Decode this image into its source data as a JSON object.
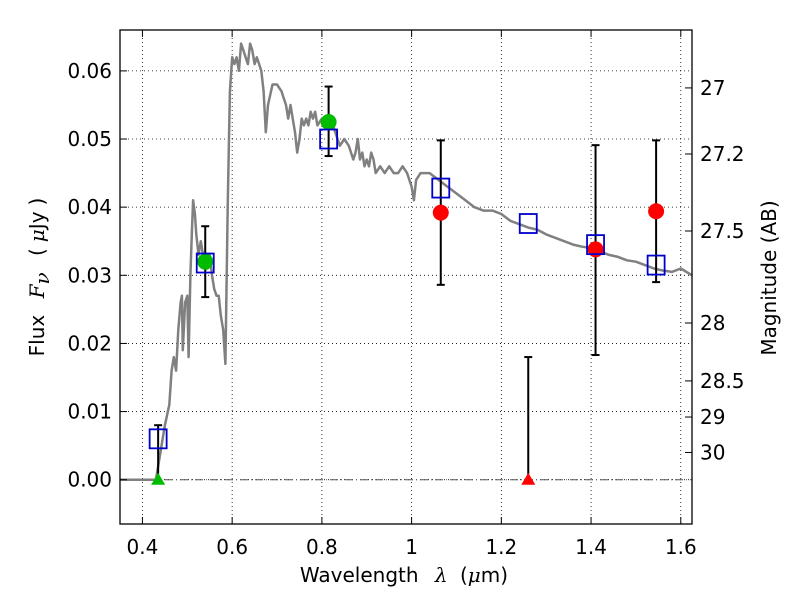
{
  "chart_data": {
    "type": "scatter",
    "xlabel": {
      "prefix": "Wavelength",
      "symbol": "λ",
      "unit_open": "(",
      "unit_mu": "μ",
      "unit_rest": "m)"
    },
    "ylabel": {
      "prefix": "Flux",
      "symbol": "F",
      "subscript": "ν",
      "unit_open": "(",
      "unit_mu": "μ",
      "unit_rest": "Jy",
      "unit_close": ")"
    },
    "y2label": "Magnitude (AB)",
    "xlim": [
      0.35,
      1.625
    ],
    "ylim": [
      -0.0065,
      0.066
    ],
    "xticks": [
      {
        "value": 0.4,
        "label": "0.4"
      },
      {
        "value": 0.6,
        "label": "0.6"
      },
      {
        "value": 0.8,
        "label": "0.8"
      },
      {
        "value": 1.0,
        "label": "1"
      },
      {
        "value": 1.2,
        "label": "1.2"
      },
      {
        "value": 1.4,
        "label": "1.4"
      },
      {
        "value": 1.6,
        "label": "1.6"
      }
    ],
    "yticks": [
      {
        "value": 0.0,
        "label": "0.00"
      },
      {
        "value": 0.01,
        "label": "0.01"
      },
      {
        "value": 0.02,
        "label": "0.02"
      },
      {
        "value": 0.03,
        "label": "0.03"
      },
      {
        "value": 0.04,
        "label": "0.04"
      },
      {
        "value": 0.05,
        "label": "0.05"
      },
      {
        "value": 0.06,
        "label": "0.06"
      }
    ],
    "y2ticks": [
      {
        "flux": 0.0575,
        "label": "27"
      },
      {
        "flux": 0.0478,
        "label": "27.2"
      },
      {
        "flux": 0.0365,
        "label": "27.5"
      },
      {
        "flux": 0.023,
        "label": "28"
      },
      {
        "flux": 0.0145,
        "label": "28.5"
      },
      {
        "flux": 0.0092,
        "label": "29"
      },
      {
        "flux": 0.004,
        "label": "30"
      }
    ],
    "grid": true,
    "colors": {
      "model": "#808080",
      "model_points": "#0000cc",
      "green_obs": "#00bb00",
      "red_obs": "#ff0000",
      "errorbar": "#000000",
      "zero_line": "#555555"
    },
    "series": [
      {
        "name": "model spectrum",
        "kind": "line",
        "points": [
          [
            0.35,
            0.0
          ],
          [
            0.43,
            0.0
          ],
          [
            0.44,
            0.004
          ],
          [
            0.45,
            0.008
          ],
          [
            0.46,
            0.011
          ],
          [
            0.465,
            0.016
          ],
          [
            0.47,
            0.018
          ],
          [
            0.475,
            0.016
          ],
          [
            0.48,
            0.022
          ],
          [
            0.485,
            0.026
          ],
          [
            0.488,
            0.027
          ],
          [
            0.49,
            0.019
          ],
          [
            0.495,
            0.026
          ],
          [
            0.5,
            0.027
          ],
          [
            0.503,
            0.018
          ],
          [
            0.507,
            0.03
          ],
          [
            0.51,
            0.036
          ],
          [
            0.513,
            0.041
          ],
          [
            0.517,
            0.039
          ],
          [
            0.52,
            0.036
          ],
          [
            0.525,
            0.033
          ],
          [
            0.53,
            0.035
          ],
          [
            0.535,
            0.033
          ],
          [
            0.54,
            0.032
          ],
          [
            0.545,
            0.031
          ],
          [
            0.55,
            0.033
          ],
          [
            0.555,
            0.03
          ],
          [
            0.56,
            0.028
          ],
          [
            0.565,
            0.027
          ],
          [
            0.57,
            0.027
          ],
          [
            0.575,
            0.024
          ],
          [
            0.58,
            0.022
          ],
          [
            0.585,
            0.017
          ],
          [
            0.59,
            0.04
          ],
          [
            0.595,
            0.057
          ],
          [
            0.6,
            0.062
          ],
          [
            0.605,
            0.061
          ],
          [
            0.61,
            0.062
          ],
          [
            0.615,
            0.06
          ],
          [
            0.62,
            0.064
          ],
          [
            0.625,
            0.063
          ],
          [
            0.63,
            0.062
          ],
          [
            0.635,
            0.061
          ],
          [
            0.64,
            0.064
          ],
          [
            0.645,
            0.063
          ],
          [
            0.65,
            0.061
          ],
          [
            0.655,
            0.062
          ],
          [
            0.66,
            0.061
          ],
          [
            0.665,
            0.06
          ],
          [
            0.67,
            0.057
          ],
          [
            0.675,
            0.051
          ],
          [
            0.68,
            0.055
          ],
          [
            0.69,
            0.058
          ],
          [
            0.7,
            0.058
          ],
          [
            0.71,
            0.057
          ],
          [
            0.715,
            0.056
          ],
          [
            0.72,
            0.055
          ],
          [
            0.725,
            0.053
          ],
          [
            0.73,
            0.055
          ],
          [
            0.735,
            0.053
          ],
          [
            0.74,
            0.051
          ],
          [
            0.745,
            0.048
          ],
          [
            0.75,
            0.05
          ],
          [
            0.755,
            0.053
          ],
          [
            0.76,
            0.052
          ],
          [
            0.765,
            0.053
          ],
          [
            0.77,
            0.052
          ],
          [
            0.775,
            0.054
          ],
          [
            0.78,
            0.053
          ],
          [
            0.785,
            0.054
          ],
          [
            0.79,
            0.052
          ],
          [
            0.8,
            0.053
          ],
          [
            0.81,
            0.052
          ],
          [
            0.82,
            0.053
          ],
          [
            0.83,
            0.051
          ],
          [
            0.84,
            0.049
          ],
          [
            0.85,
            0.05
          ],
          [
            0.86,
            0.049
          ],
          [
            0.87,
            0.047
          ],
          [
            0.875,
            0.048
          ],
          [
            0.88,
            0.05
          ],
          [
            0.885,
            0.047
          ],
          [
            0.89,
            0.048
          ],
          [
            0.895,
            0.046
          ],
          [
            0.9,
            0.047
          ],
          [
            0.905,
            0.046
          ],
          [
            0.91,
            0.048
          ],
          [
            0.915,
            0.047
          ],
          [
            0.92,
            0.045
          ],
          [
            0.93,
            0.046
          ],
          [
            0.94,
            0.045
          ],
          [
            0.95,
            0.046
          ],
          [
            0.96,
            0.045
          ],
          [
            0.97,
            0.045
          ],
          [
            0.98,
            0.046
          ],
          [
            0.99,
            0.045
          ],
          [
            1.0,
            0.043
          ],
          [
            1.005,
            0.041
          ],
          [
            1.01,
            0.044
          ],
          [
            1.02,
            0.045
          ],
          [
            1.04,
            0.045
          ],
          [
            1.06,
            0.044
          ],
          [
            1.08,
            0.043
          ],
          [
            1.1,
            0.042
          ],
          [
            1.12,
            0.041
          ],
          [
            1.14,
            0.04
          ],
          [
            1.16,
            0.0395
          ],
          [
            1.18,
            0.0395
          ],
          [
            1.2,
            0.039
          ],
          [
            1.22,
            0.038
          ],
          [
            1.24,
            0.0375
          ],
          [
            1.26,
            0.037
          ],
          [
            1.28,
            0.0367
          ],
          [
            1.3,
            0.036
          ],
          [
            1.32,
            0.0355
          ],
          [
            1.34,
            0.035
          ],
          [
            1.36,
            0.0345
          ],
          [
            1.38,
            0.0342
          ],
          [
            1.4,
            0.034
          ],
          [
            1.42,
            0.0335
          ],
          [
            1.44,
            0.033
          ],
          [
            1.46,
            0.0327
          ],
          [
            1.48,
            0.0322
          ],
          [
            1.5,
            0.032
          ],
          [
            1.52,
            0.0315
          ],
          [
            1.54,
            0.031
          ],
          [
            1.56,
            0.0307
          ],
          [
            1.58,
            0.0305
          ],
          [
            1.6,
            0.031
          ],
          [
            1.625,
            0.03
          ]
        ]
      },
      {
        "name": "model band fluxes",
        "kind": "square",
        "points": [
          [
            0.435,
            0.006
          ],
          [
            0.54,
            0.0318
          ],
          [
            0.815,
            0.05
          ],
          [
            1.065,
            0.0428
          ],
          [
            1.26,
            0.0376
          ],
          [
            1.41,
            0.0345
          ],
          [
            1.545,
            0.0315
          ]
        ]
      },
      {
        "name": "detections (green)",
        "kind": "circle",
        "points": [
          {
            "x": 0.54,
            "y": 0.032,
            "err_lo": 0.0268,
            "err_hi": 0.0372
          },
          {
            "x": 0.815,
            "y": 0.0525,
            "err_lo": 0.0475,
            "err_hi": 0.0577
          }
        ]
      },
      {
        "name": "detections (red)",
        "kind": "circle",
        "points": [
          {
            "x": 1.065,
            "y": 0.0392,
            "err_lo": 0.0286,
            "err_hi": 0.0498
          },
          {
            "x": 1.41,
            "y": 0.0338,
            "err_lo": 0.0183,
            "err_hi": 0.0491
          },
          {
            "x": 1.545,
            "y": 0.0394,
            "err_lo": 0.029,
            "err_hi": 0.0498
          }
        ]
      },
      {
        "name": "upper limits",
        "kind": "triangle",
        "points": [
          {
            "x": 0.435,
            "y": 0.0,
            "err_lo": 0.0,
            "err_hi": 0.008,
            "color": "green"
          },
          {
            "x": 1.26,
            "y": 0.0,
            "err_lo": 0.0,
            "err_hi": 0.018,
            "color": "red"
          }
        ]
      }
    ]
  }
}
